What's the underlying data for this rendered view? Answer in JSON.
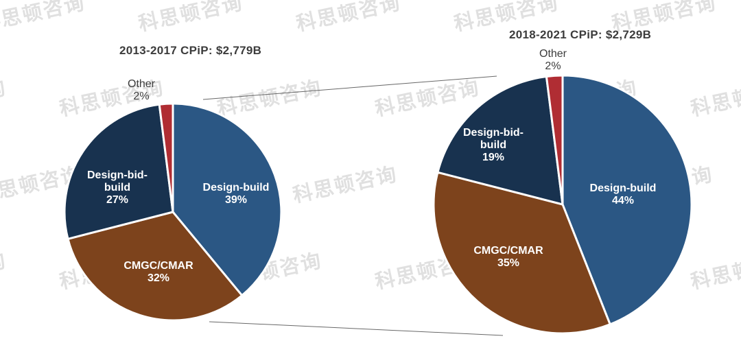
{
  "watermark": {
    "text": "科思顿咨询"
  },
  "chart_data": [
    {
      "type": "pie",
      "title": "2013-2017 CPiP: $2,779B",
      "unit": "%",
      "start_angle_deg": 0,
      "direction": "clockwise",
      "slices": [
        {
          "label": "Design-build",
          "value": 39,
          "color": "#2B5784"
        },
        {
          "label": "CMGC/CMAR",
          "value": 32,
          "color": "#7D431C"
        },
        {
          "label": "Design-bid-build",
          "value": 27,
          "color": "#18324F",
          "label_lines": [
            "Design-bid-",
            "build"
          ]
        },
        {
          "label": "Other",
          "value": 2,
          "color": "#B02D33"
        }
      ]
    },
    {
      "type": "pie",
      "title": "2018-2021 CPiP: $2,729B",
      "unit": "%",
      "start_angle_deg": 0,
      "direction": "clockwise",
      "slices": [
        {
          "label": "Design-build",
          "value": 44,
          "color": "#2B5784"
        },
        {
          "label": "CMGC/CMAR",
          "value": 35,
          "color": "#7D431C"
        },
        {
          "label": "Design-bid-build",
          "value": 19,
          "color": "#18324F",
          "label_lines": [
            "Design-bid-",
            "build"
          ]
        },
        {
          "label": "Other",
          "value": 2,
          "color": "#B02D33"
        }
      ]
    }
  ]
}
